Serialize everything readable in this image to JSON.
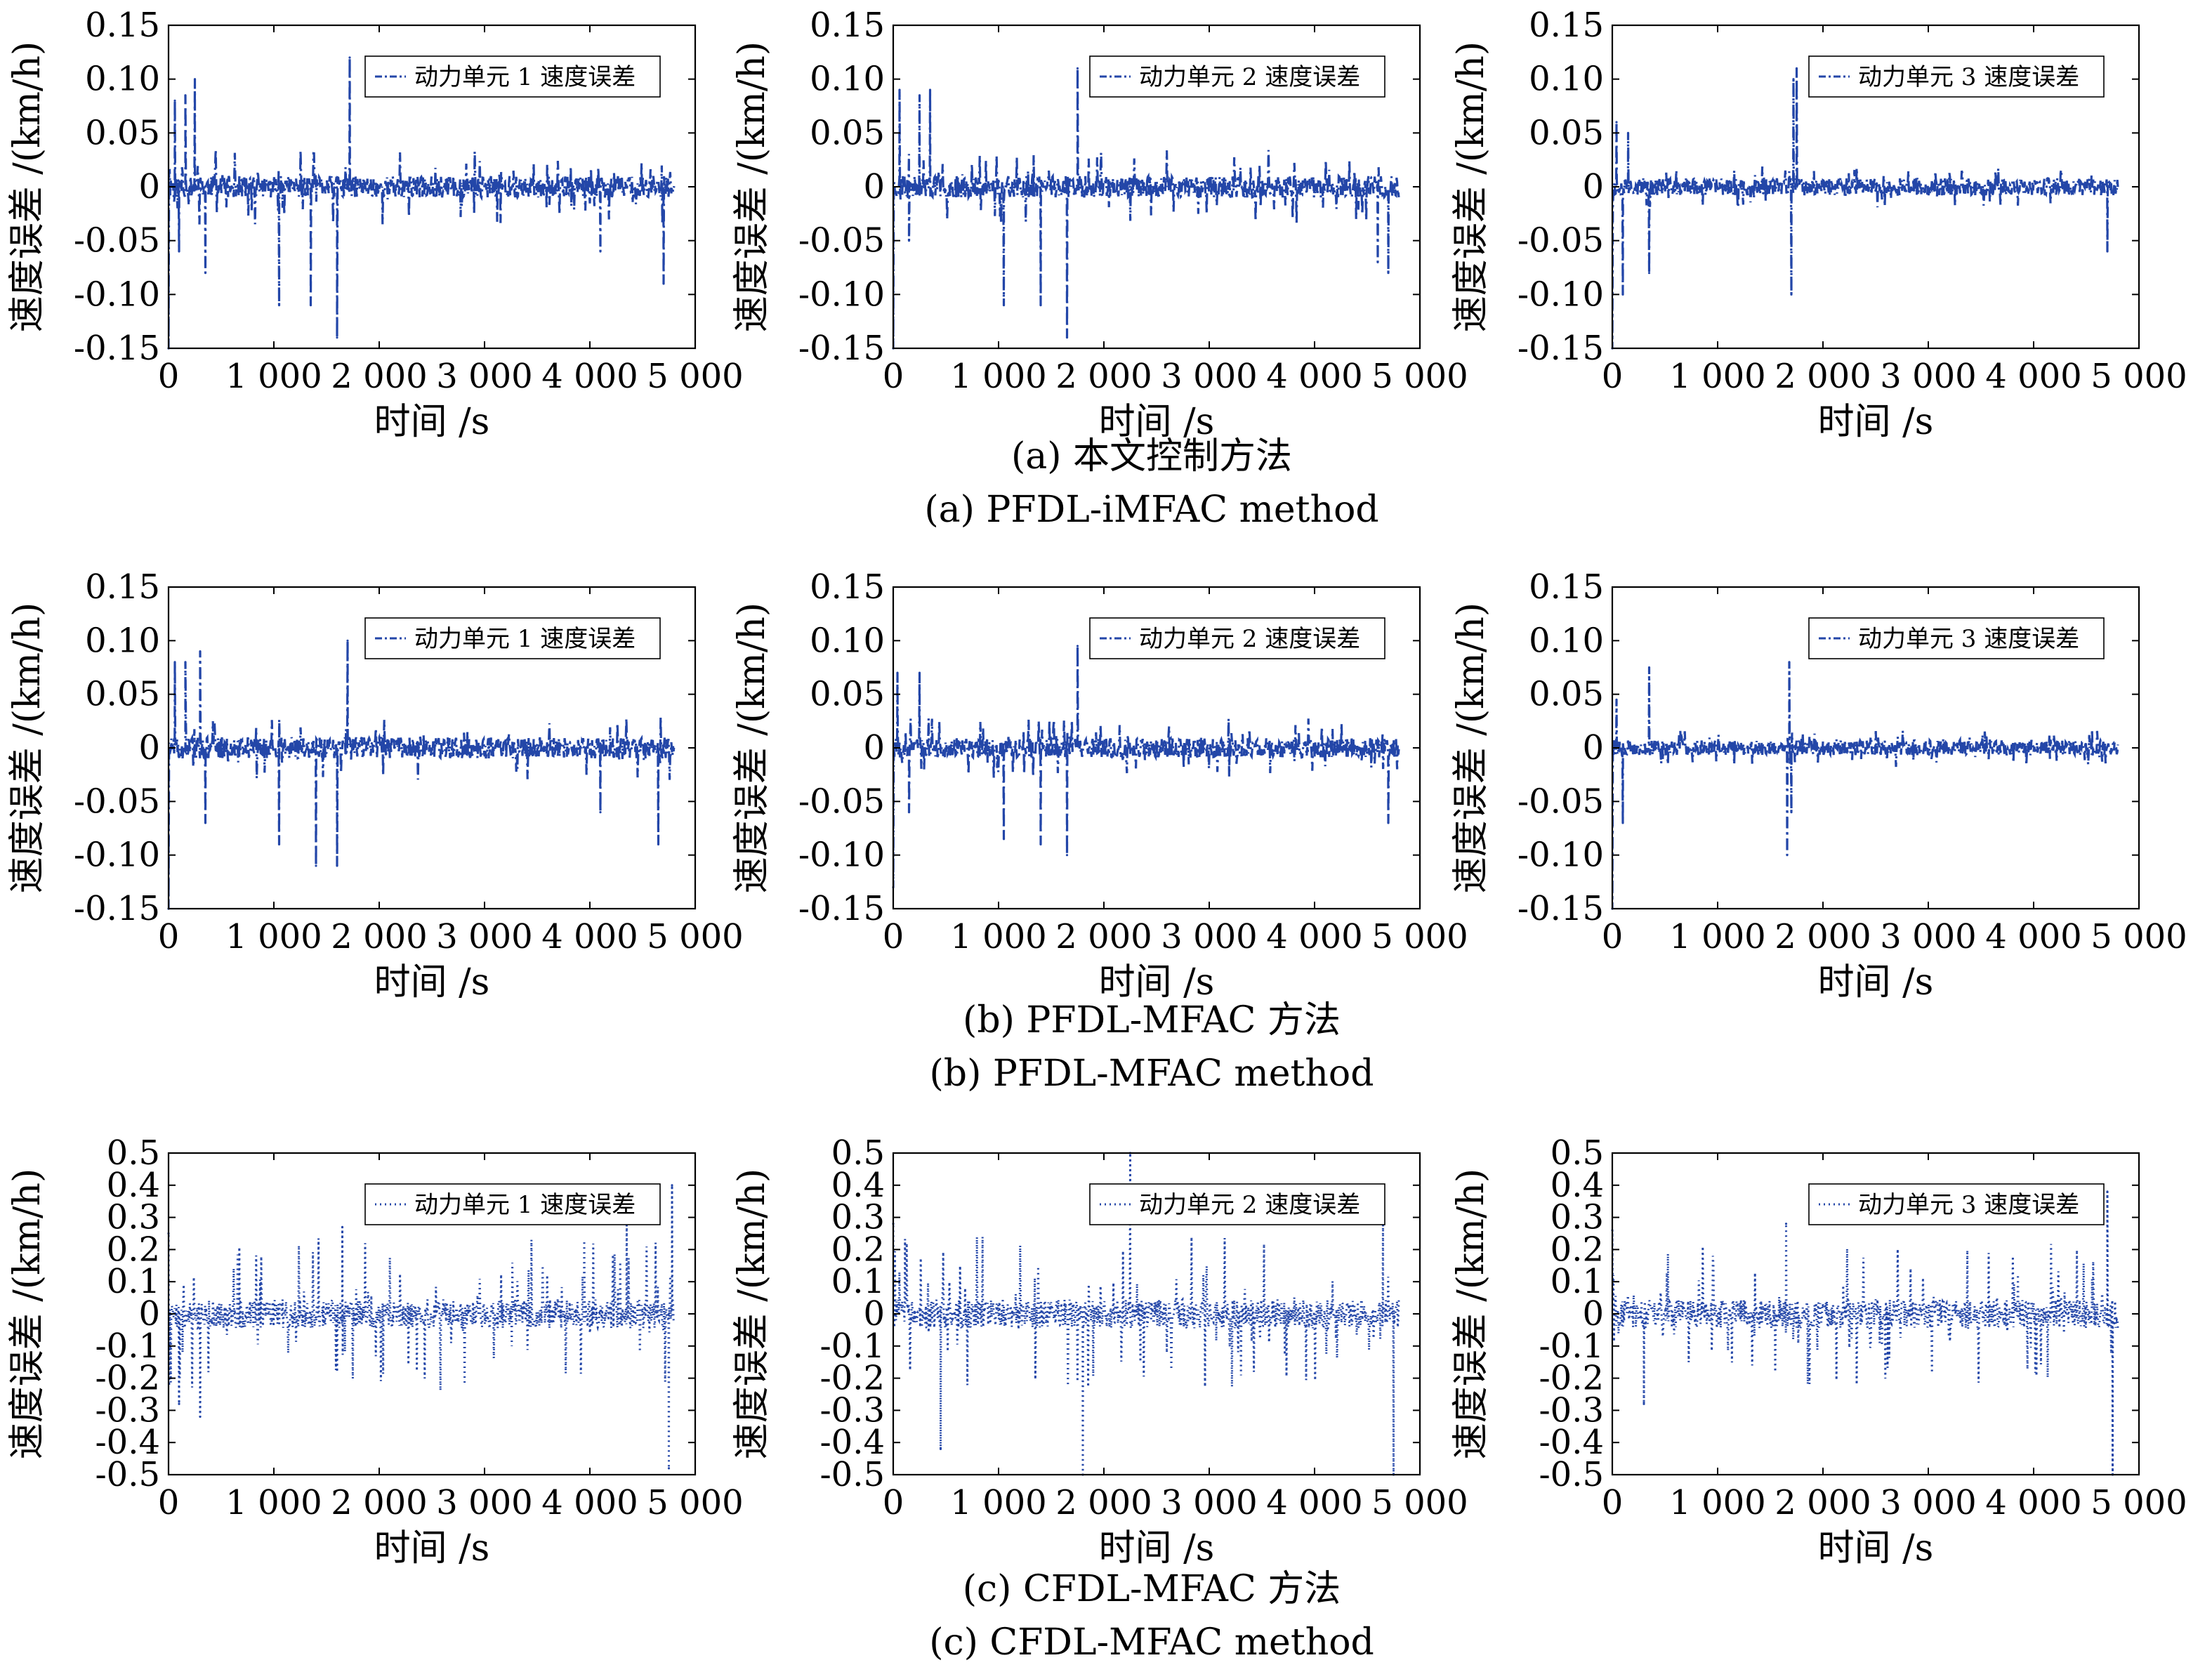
{
  "colors": {
    "series": "#2346a8",
    "axis": "#000000",
    "background": "#ffffff"
  },
  "chart_data": [
    {
      "id": "a1",
      "row": 0,
      "col": 0,
      "type": "line",
      "line_style": "dash-dot",
      "xlabel": "时间 /s",
      "ylabel": "速度误差 /(km/h)",
      "xlim": [
        0,
        5000
      ],
      "ylim": [
        -0.15,
        0.15
      ],
      "xticks": [
        "0",
        "1 000",
        "2 000",
        "3 000",
        "4 000",
        "5 000"
      ],
      "yticks": [
        "-0.15",
        "-0.10",
        "-0.05",
        "0",
        "0.05",
        "0.10",
        "0.15"
      ],
      "legend": "动力单元 1 速度误差",
      "legend_position": "top-right",
      "grid": false,
      "x_end": 4800,
      "noise": 0.01,
      "sparse": 0.035,
      "seed": 11,
      "x": [
        0,
        60,
        100,
        160,
        250,
        350,
        1050,
        1350,
        1600,
        1720,
        4100,
        4700
      ],
      "y": [
        -0.15,
        0.08,
        -0.06,
        0.085,
        0.1,
        -0.08,
        -0.11,
        -0.11,
        -0.14,
        0.12,
        -0.06,
        -0.09
      ]
    },
    {
      "id": "a2",
      "row": 0,
      "col": 1,
      "type": "line",
      "line_style": "dash-dot",
      "xlabel": "时间 /s",
      "ylabel": "速度误差 /(km/h)",
      "xlim": [
        0,
        5000
      ],
      "ylim": [
        -0.15,
        0.15
      ],
      "xticks": [
        "0",
        "1 000",
        "2 000",
        "3 000",
        "4 000",
        "5 000"
      ],
      "yticks": [
        "-0.15",
        "-0.10",
        "-0.05",
        "0",
        "0.05",
        "0.10",
        "0.15"
      ],
      "legend": "动力单元 2 速度误差",
      "legend_position": "top-right",
      "grid": false,
      "x_end": 4800,
      "noise": 0.01,
      "sparse": 0.035,
      "seed": 23,
      "x": [
        0,
        60,
        150,
        250,
        350,
        1050,
        1400,
        1650,
        1750,
        4600,
        4700
      ],
      "y": [
        -0.15,
        0.09,
        -0.05,
        0.085,
        0.09,
        -0.11,
        -0.11,
        -0.14,
        0.11,
        -0.07,
        -0.08
      ]
    },
    {
      "id": "a3",
      "row": 0,
      "col": 2,
      "type": "line",
      "line_style": "dash-dot",
      "xlabel": "时间 /s",
      "ylabel": "速度误差 /(km/h)",
      "xlim": [
        0,
        5000
      ],
      "ylim": [
        -0.15,
        0.15
      ],
      "xticks": [
        "0",
        "1 000",
        "2 000",
        "3 000",
        "4 000",
        "5 000"
      ],
      "yticks": [
        "-0.15",
        "-0.10",
        "-0.05",
        "0",
        "0.05",
        "0.10",
        "0.15"
      ],
      "legend": "动力单元 3 速度误差",
      "legend_position": "top-right",
      "grid": false,
      "x_end": 4800,
      "noise": 0.008,
      "sparse": 0.02,
      "seed": 37,
      "x": [
        0,
        40,
        100,
        150,
        350,
        1700,
        1720,
        1750,
        4700
      ],
      "y": [
        -0.15,
        0.06,
        -0.1,
        0.05,
        -0.08,
        -0.1,
        0.1,
        0.11,
        -0.06
      ]
    },
    {
      "id": "b1",
      "row": 1,
      "col": 0,
      "type": "line",
      "line_style": "dash-dot",
      "xlabel": "时间 /s",
      "ylabel": "速度误差 /(km/h)",
      "xlim": [
        0,
        5000
      ],
      "ylim": [
        -0.15,
        0.15
      ],
      "xticks": [
        "0",
        "1 000",
        "2 000",
        "3 000",
        "4 000",
        "5 000"
      ],
      "yticks": [
        "-0.15",
        "-0.10",
        "-0.05",
        "0",
        "0.05",
        "0.10",
        "0.15"
      ],
      "legend": "动力单元 1 速度误差",
      "legend_position": "top-right",
      "grid": false,
      "x_end": 4800,
      "noise": 0.01,
      "sparse": 0.03,
      "seed": 51,
      "x": [
        0,
        60,
        160,
        300,
        350,
        1050,
        1400,
        1600,
        1700,
        4100,
        4650
      ],
      "y": [
        -0.15,
        0.08,
        0.08,
        0.09,
        -0.07,
        -0.09,
        -0.11,
        -0.11,
        0.1,
        -0.06,
        -0.09
      ]
    },
    {
      "id": "b2",
      "row": 1,
      "col": 1,
      "type": "line",
      "line_style": "dash-dot",
      "xlabel": "时间 /s",
      "ylabel": "速度误差 /(km/h)",
      "xlim": [
        0,
        5000
      ],
      "ylim": [
        -0.15,
        0.15
      ],
      "xticks": [
        "0",
        "1 000",
        "2 000",
        "3 000",
        "4 000",
        "5 000"
      ],
      "yticks": [
        "-0.15",
        "-0.10",
        "-0.05",
        "0",
        "0.05",
        "0.10",
        "0.15"
      ],
      "legend": "动力单元 2 速度误差",
      "legend_position": "top-right",
      "grid": false,
      "x_end": 4800,
      "noise": 0.009,
      "sparse": 0.028,
      "seed": 67,
      "x": [
        0,
        40,
        150,
        250,
        1050,
        1400,
        1650,
        1750,
        4700
      ],
      "y": [
        -0.13,
        0.07,
        -0.06,
        0.07,
        -0.085,
        -0.09,
        -0.1,
        0.095,
        -0.07
      ]
    },
    {
      "id": "b3",
      "row": 1,
      "col": 2,
      "type": "line",
      "line_style": "dash-dot",
      "xlabel": "时间 /s",
      "ylabel": "速度误差 /(km/h)",
      "xlim": [
        0,
        5000
      ],
      "ylim": [
        -0.15,
        0.15
      ],
      "xticks": [
        "0",
        "1 000",
        "2 000",
        "3 000",
        "4 000",
        "5 000"
      ],
      "yticks": [
        "-0.15",
        "-0.10",
        "-0.05",
        "0",
        "0.05",
        "0.10",
        "0.15"
      ],
      "legend": "动力单元 3 速度误差",
      "legend_position": "top-right",
      "grid": false,
      "x_end": 4800,
      "noise": 0.007,
      "sparse": 0.018,
      "seed": 79,
      "x": [
        0,
        40,
        100,
        350,
        1660,
        1680,
        1700
      ],
      "y": [
        -0.15,
        0.045,
        -0.07,
        0.075,
        -0.1,
        0.08,
        -0.06
      ]
    },
    {
      "id": "c1",
      "row": 2,
      "col": 0,
      "type": "line",
      "line_style": "dotted",
      "xlabel": "时间 /s",
      "ylabel": "速度误差 /(km/h)",
      "xlim": [
        0,
        5000
      ],
      "ylim": [
        -0.5,
        0.5
      ],
      "xticks": [
        "0",
        "1 000",
        "2 000",
        "3 000",
        "4 000",
        "5 000"
      ],
      "yticks": [
        "-0.5",
        "-0.4",
        "-0.3",
        "-0.2",
        "-0.1",
        "0",
        "0.1",
        "0.2",
        "0.3",
        "0.4",
        "0.5"
      ],
      "legend": "动力单元 1 速度误差",
      "legend_position": "top-right",
      "grid": false,
      "x_end": 4800,
      "noise": 0.045,
      "sparse": 0.24,
      "seed": 91,
      "x": [
        0,
        100,
        300,
        1650,
        4350,
        4750,
        4780
      ],
      "y": [
        0.25,
        -0.28,
        -0.32,
        0.27,
        0.33,
        -0.48,
        0.4
      ]
    },
    {
      "id": "c2",
      "row": 2,
      "col": 1,
      "type": "line",
      "line_style": "dotted",
      "xlabel": "时间 /s",
      "ylabel": "速度误差 /(km/h)",
      "xlim": [
        0,
        5000
      ],
      "ylim": [
        -0.5,
        0.5
      ],
      "xticks": [
        "0",
        "1 000",
        "2 000",
        "3 000",
        "4 000",
        "5 000"
      ],
      "yticks": [
        "-0.5",
        "-0.4",
        "-0.3",
        "-0.2",
        "-0.1",
        "0",
        "0.1",
        "0.2",
        "0.3",
        "0.4",
        "0.5"
      ],
      "legend": "动力单元 2 速度误差",
      "legend_position": "top-right",
      "grid": false,
      "x_end": 4800,
      "noise": 0.045,
      "sparse": 0.24,
      "seed": 103,
      "x": [
        0,
        450,
        1800,
        2250,
        4650,
        4750
      ],
      "y": [
        0.28,
        -0.42,
        -0.5,
        0.5,
        0.3,
        -0.5
      ]
    },
    {
      "id": "c3",
      "row": 2,
      "col": 2,
      "type": "line",
      "line_style": "dotted",
      "xlabel": "时间 /s",
      "ylabel": "速度误差 /(km/h)",
      "xlim": [
        0,
        5000
      ],
      "ylim": [
        -0.5,
        0.5
      ],
      "xticks": [
        "0",
        "1 000",
        "2 000",
        "3 000",
        "4 000",
        "5 000"
      ],
      "yticks": [
        "-0.5",
        "-0.4",
        "-0.3",
        "-0.2",
        "-0.1",
        "0",
        "0.1",
        "0.2",
        "0.3",
        "0.4",
        "0.5"
      ],
      "legend": "动力单元 3 速度误差",
      "legend_position": "top-right",
      "grid": false,
      "x_end": 4800,
      "noise": 0.045,
      "sparse": 0.22,
      "seed": 117,
      "x": [
        0,
        300,
        1650,
        4700,
        4750
      ],
      "y": [
        0.26,
        -0.28,
        0.28,
        0.38,
        -0.5
      ]
    }
  ],
  "captions": [
    {
      "cn": "(a) 本文控制方法",
      "en": "(a) PFDL-iMFAC method"
    },
    {
      "cn": "(b) PFDL-MFAC 方法",
      "en": "(b) PFDL-MFAC method"
    },
    {
      "cn": "(c) CFDL-MFAC 方法",
      "en": "(c) CFDL-MFAC method"
    }
  ]
}
